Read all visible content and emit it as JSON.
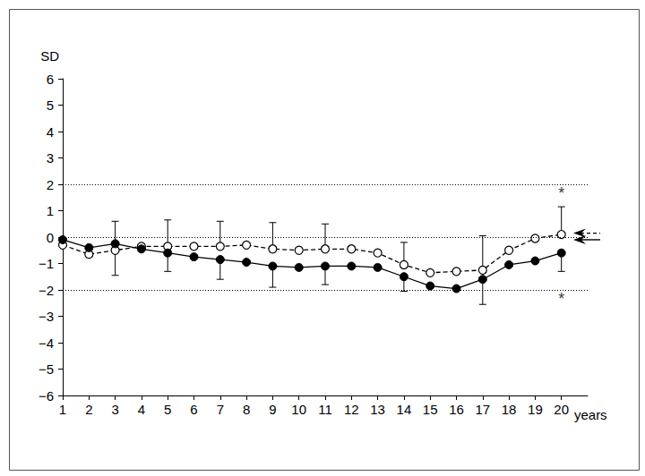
{
  "chart_data": {
    "type": "line",
    "x_label": "years",
    "y_label": "SD",
    "x": [
      1,
      2,
      3,
      4,
      5,
      6,
      7,
      8,
      9,
      10,
      11,
      12,
      13,
      14,
      15,
      16,
      17,
      18,
      19,
      20
    ],
    "xlim": [
      1,
      21
    ],
    "xticks": [
      1,
      2,
      3,
      4,
      5,
      6,
      7,
      8,
      9,
      10,
      11,
      12,
      13,
      14,
      15,
      16,
      17,
      18,
      19,
      20
    ],
    "ylim": [
      -6,
      6
    ],
    "yticks": [
      {
        "value": -6,
        "label": "−6"
      },
      {
        "value": -5,
        "label": "−5"
      },
      {
        "value": -4,
        "label": "−4"
      },
      {
        "value": -3,
        "label": "−3"
      },
      {
        "value": -2,
        "label": "−2"
      },
      {
        "value": -1,
        "label": "−1"
      },
      0,
      1,
      2,
      3,
      4,
      5,
      6
    ],
    "grid": false,
    "reference_lines": [
      2,
      0,
      -2
    ],
    "series": [
      {
        "color": "#000000",
        "marker": "open_circle",
        "line_style": "dashed",
        "values": [
          -0.3,
          -0.65,
          -0.5,
          -0.35,
          -0.35,
          -0.35,
          -0.35,
          -0.3,
          -0.45,
          -0.5,
          -0.45,
          -0.45,
          -0.6,
          -1.05,
          -1.35,
          -1.3,
          -1.25,
          -0.5,
          -0.05,
          0.1
        ],
        "error_upper": [
          null,
          null,
          1.1,
          null,
          1.0,
          null,
          0.95,
          null,
          1.0,
          null,
          0.95,
          null,
          null,
          0.85,
          null,
          null,
          1.3,
          null,
          null,
          1.05
        ],
        "arrow": 0.15
      },
      {
        "color": "#000000",
        "marker": "filled_circle",
        "line_style": "solid",
        "values": [
          -0.1,
          -0.4,
          -0.25,
          -0.45,
          -0.6,
          -0.75,
          -0.85,
          -0.95,
          -1.1,
          -1.15,
          -1.1,
          -1.1,
          -1.15,
          -1.5,
          -1.85,
          -1.95,
          -1.6,
          -1.05,
          -0.9,
          -0.6
        ],
        "error_lower": [
          null,
          null,
          1.2,
          null,
          0.7,
          null,
          0.75,
          null,
          0.8,
          null,
          0.7,
          null,
          null,
          0.55,
          null,
          null,
          0.95,
          null,
          null,
          0.7
        ],
        "arrow": -0.1
      }
    ],
    "annotations": [
      {
        "text": "*",
        "x": 20,
        "y": 1.65
      },
      {
        "text": "*",
        "x": 20,
        "y": -2.35
      }
    ]
  }
}
